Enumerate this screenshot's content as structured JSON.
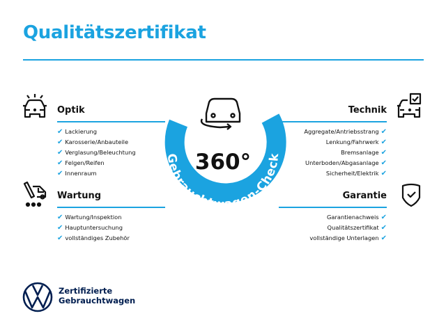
{
  "title": "Qualitätszertifikat",
  "check": {
    "degrees": "360°",
    "arc_text": "Gebrauchtwagen-Check"
  },
  "sections": {
    "optik": {
      "title": "Optik",
      "icon": "car-lights-icon",
      "items": [
        "Lackierung",
        "Karosserie/Anbauteile",
        "Verglasung/Beleuchtung",
        "Felgen/Reifen",
        "Innenraum"
      ]
    },
    "wartung": {
      "title": "Wartung",
      "icon": "maintenance-tools-icon",
      "items": [
        "Wartung/Inspektion",
        "Hauptuntersuchung",
        "vollständiges Zubehör"
      ]
    },
    "technik": {
      "title": "Technik",
      "icon": "car-checkbox-icon",
      "items": [
        "Aggregate/Antriebsstrang",
        "Lenkung/Fahrwerk",
        "Bremsanlage",
        "Unterboden/Abgasanlage",
        "Sicherheit/Elektrik"
      ]
    },
    "garantie": {
      "title": "Garantie",
      "icon": "shield-check-icon",
      "items": [
        "Garantienachweis",
        "Qualitätszertifikat",
        "vollständige Unterlagen"
      ]
    }
  },
  "checkmark": "✔",
  "brand": {
    "line1": "Zertifizierte",
    "line2": "Gebrauchtwagen"
  },
  "colors": {
    "accent": "#1ba3e0",
    "brand": "#001e50"
  }
}
